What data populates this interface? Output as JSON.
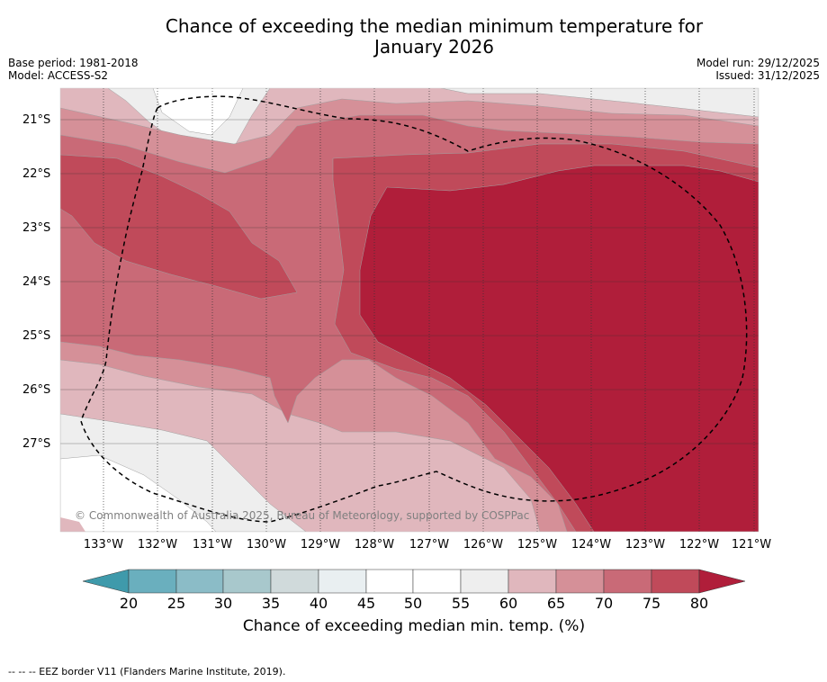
{
  "title_line1": "Chance of exceeding the median minimum temperature for",
  "title_line2": "January 2026",
  "base_period": "Base period: 1981-2018",
  "model": "Model: ACCESS-S2",
  "model_run": "Model run: 29/12/2025",
  "issued": "Issued: 31/12/2025",
  "latitudes": [
    "21°S",
    "22°S",
    "23°S",
    "24°S",
    "25°S",
    "26°S",
    "27°S"
  ],
  "longitudes": [
    "133°W",
    "132°W",
    "131°W",
    "130°W",
    "129°W",
    "128°W",
    "127°W",
    "126°W",
    "125°W",
    "124°W",
    "123°W",
    "122°W",
    "121°W"
  ],
  "copyright": "© Commonwealth of Australia 2025, Bureau of Meteorology, supported by COSPPac",
  "colorbar": {
    "ticks": [
      "20",
      "25",
      "30",
      "35",
      "40",
      "45",
      "50",
      "55",
      "60",
      "65",
      "70",
      "75",
      "80"
    ],
    "colors": {
      "below_20": "#3f9aab",
      "20_25": "#6aafbe",
      "25_30": "#8bbcc7",
      "30_35": "#a8c8cc",
      "35_40": "#d0dadb",
      "40_45": "#e9eff1",
      "45_50": "#ffffff",
      "50_55": "#ffffff",
      "55_60": "#eeeeee",
      "60_65": "#e0b7bd",
      "65_70": "#d59098",
      "70_75": "#c96a77",
      "75_80": "#c04a5a",
      "above_80": "#b01e3a"
    },
    "label": "Chance of exceeding median min. temp. (%)"
  },
  "legend_note": "--  --  -- EEZ border V11 (Flanders Marine Institute, 2019)."
}
